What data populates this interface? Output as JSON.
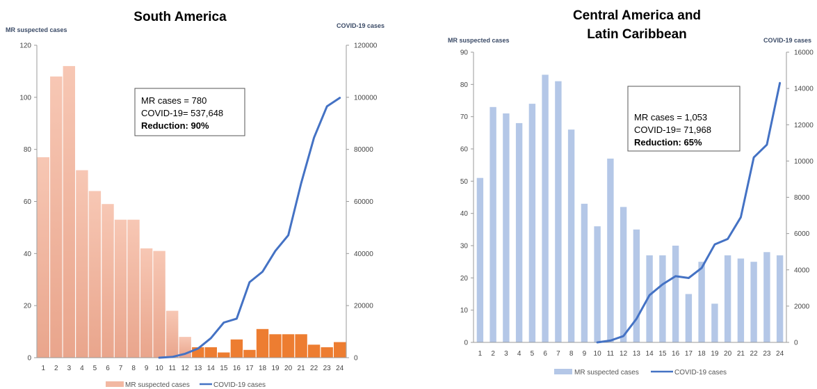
{
  "chart_data": [
    {
      "type": "bar",
      "title": "South America",
      "ylabel": "MR suspected cases",
      "y2label": "COVID-19 cases",
      "ylim": [
        0,
        120
      ],
      "y2lim": [
        0,
        120000
      ],
      "yticks": [
        "0",
        "20",
        "40",
        "60",
        "80",
        "100",
        "120"
      ],
      "y2ticks": [
        "0",
        "20000",
        "40000",
        "60000",
        "80000",
        "100000",
        "120000"
      ],
      "categories": [
        "1",
        "2",
        "3",
        "4",
        "5",
        "6",
        "7",
        "8",
        "9",
        "10",
        "11",
        "12",
        "13",
        "14",
        "15",
        "16",
        "17",
        "18",
        "19",
        "20",
        "21",
        "22",
        "23",
        "24"
      ],
      "series": [
        {
          "name": "MR suspected cases",
          "kind": "bar",
          "values": [
            77,
            108,
            112,
            72,
            64,
            59,
            53,
            53,
            42,
            41,
            18,
            8,
            4,
            4,
            2,
            7,
            3,
            11,
            9,
            9,
            9,
            5,
            4,
            6
          ],
          "colors": {
            "early": "#f2b8a2",
            "late": "#ed7d31"
          },
          "split_index": 12
        },
        {
          "name": "COVID-19 cases",
          "kind": "line",
          "axis": "right",
          "values": [
            null,
            null,
            null,
            null,
            null,
            null,
            null,
            null,
            null,
            0,
            300,
            1500,
            3500,
            7500,
            13500,
            15000,
            29000,
            33000,
            41000,
            47000,
            67000,
            84500,
            96500,
            99800
          ],
          "color": "#4472c4"
        }
      ],
      "legend": "bottom",
      "annotation": {
        "line1": "MR cases = 780",
        "line2": "COVID-19= 537,648",
        "line3": "Reduction: 90%"
      }
    },
    {
      "type": "bar",
      "title_line1": "Central America and",
      "title_line2": "Latin Caribbean",
      "ylabel": "MR suspected cases",
      "y2label": "COVID-19 cases",
      "ylim": [
        0,
        90
      ],
      "y2lim": [
        0,
        16000
      ],
      "yticks": [
        "0",
        "10",
        "20",
        "30",
        "40",
        "50",
        "60",
        "70",
        "80",
        "90"
      ],
      "y2ticks": [
        "0",
        "2000",
        "4000",
        "6000",
        "8000",
        "10000",
        "12000",
        "14000",
        "16000"
      ],
      "categories": [
        "1",
        "2",
        "3",
        "4",
        "5",
        "6",
        "7",
        "8",
        "9",
        "10",
        "11",
        "12",
        "13",
        "14",
        "15",
        "16",
        "17",
        "18",
        "19",
        "20",
        "21",
        "22",
        "23",
        "24"
      ],
      "series": [
        {
          "name": "MR suspected cases",
          "kind": "bar",
          "values": [
            51,
            73,
            71,
            68,
            74,
            83,
            81,
            66,
            43,
            36,
            57,
            42,
            35,
            27,
            27,
            30,
            15,
            25,
            12,
            27,
            26,
            25,
            28,
            27
          ],
          "color": "#b4c7e7"
        },
        {
          "name": "COVID-19 cases",
          "kind": "line",
          "axis": "right",
          "values": [
            null,
            null,
            null,
            null,
            null,
            null,
            null,
            null,
            null,
            0,
            100,
            350,
            1300,
            2600,
            3200,
            3650,
            3550,
            4100,
            5400,
            5700,
            6900,
            10200,
            10900,
            14300
          ],
          "color": "#4472c4"
        }
      ],
      "legend": "bottom",
      "annotation": {
        "line1": "MR cases = 1,053",
        "line2": "COVID-19= 71,968",
        "line3": "Reduction: 65%"
      }
    }
  ]
}
